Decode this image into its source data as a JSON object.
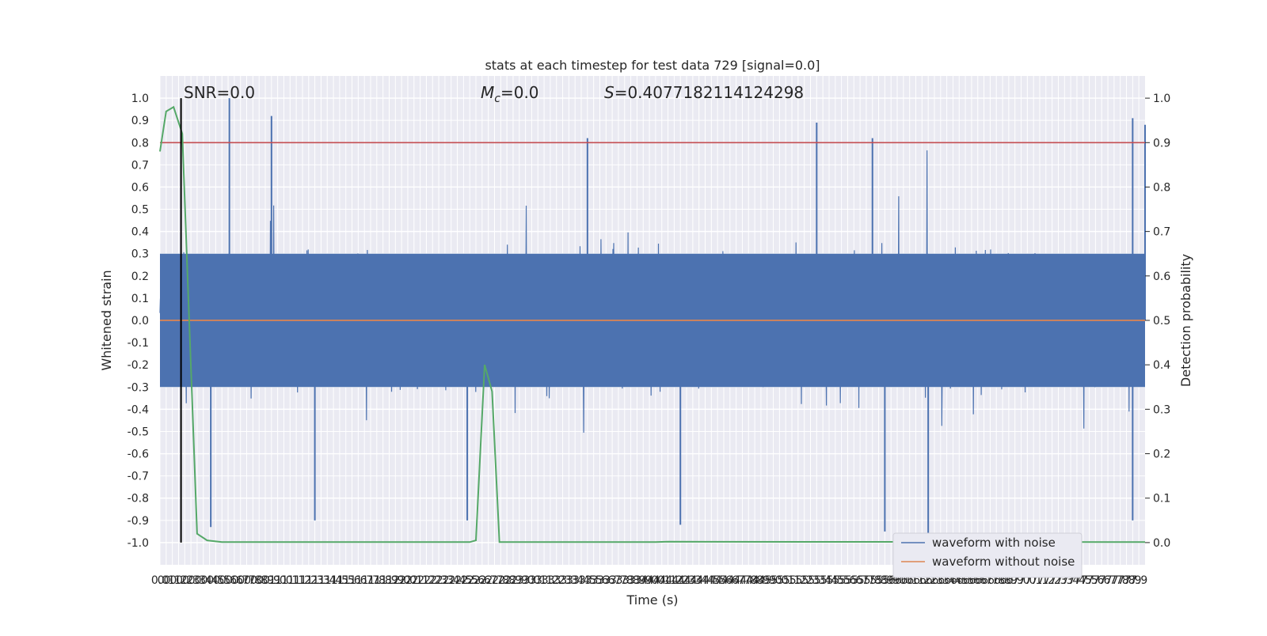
{
  "chart_data": {
    "type": "line",
    "title": "stats at each timestep for test data 729 [signal=0.0]",
    "xlabel": "Time (s)",
    "ylabel_left": "Whitened strain",
    "ylabel_right": "Detection probability",
    "xlim": [
      0.0,
      7.95
    ],
    "ylim_left": [
      -1.1,
      1.1
    ],
    "ylim_right": [
      -0.05,
      1.05
    ],
    "x_tick_step": 0.05,
    "x_ticks_labeled": "0.0 to 7.9 every 0.05 s (labels overlap as in the original)",
    "y_ticks_left": [
      -1.0,
      -0.9,
      -0.8,
      -0.7,
      -0.6,
      -0.5,
      -0.4,
      -0.3,
      -0.2,
      -0.1,
      0.0,
      0.1,
      0.2,
      0.3,
      0.4,
      0.5,
      0.6,
      0.7,
      0.8,
      0.9,
      1.0
    ],
    "y_ticks_right": [
      0.0,
      0.1,
      0.2,
      0.3,
      0.4,
      0.5,
      0.6,
      0.7,
      0.8,
      0.9,
      1.0
    ],
    "annotations": {
      "snr": "SNR=0.0",
      "mc_symbol": "M",
      "mc_sub": "c",
      "mc_value": "=0.0",
      "s_symbol": "S",
      "s_value": "=0.4077182114124298"
    },
    "vertical_marker_x": 0.17,
    "threshold_probability": 0.9,
    "grid": true,
    "legend_placement": "lower-right",
    "series": [
      {
        "name": "waveform with noise",
        "axis": "left",
        "color": "#4c72b0",
        "description": "dense whitened noise, mostly within about -0.6..0.6 with spikes toward +/-1.0",
        "spikes_x": [
          0.56,
          0.9,
          3.45,
          5.3,
          5.75,
          7.85,
          7.95
        ],
        "spikes_y": [
          1.0,
          0.92,
          0.82,
          0.89,
          0.82,
          0.91,
          0.88
        ],
        "neg_spikes_x": [
          0.41,
          1.25,
          2.48,
          4.2,
          5.85,
          6.2,
          7.85
        ],
        "neg_spikes_y": [
          -0.93,
          -0.9,
          -0.9,
          -0.92,
          -0.95,
          -0.96,
          -0.9
        ]
      },
      {
        "name": "waveform without noise",
        "axis": "left",
        "color": "#dd8452",
        "x": [
          0.0,
          7.95
        ],
        "y": [
          0.0,
          0.0
        ]
      },
      {
        "name": "",
        "axis": "right",
        "color": "#55a868",
        "x": [
          0.0,
          0.05,
          0.11,
          0.18,
          0.3,
          0.38,
          0.5,
          1.0,
          2.5,
          2.55,
          2.62,
          2.68,
          2.74,
          4.0,
          4.1,
          7.95
        ],
        "y": [
          0.88,
          0.97,
          0.98,
          0.92,
          0.02,
          0.005,
          0.001,
          0.001,
          0.001,
          0.005,
          0.4,
          0.34,
          0.001,
          0.001,
          0.002,
          0.001
        ]
      }
    ]
  }
}
